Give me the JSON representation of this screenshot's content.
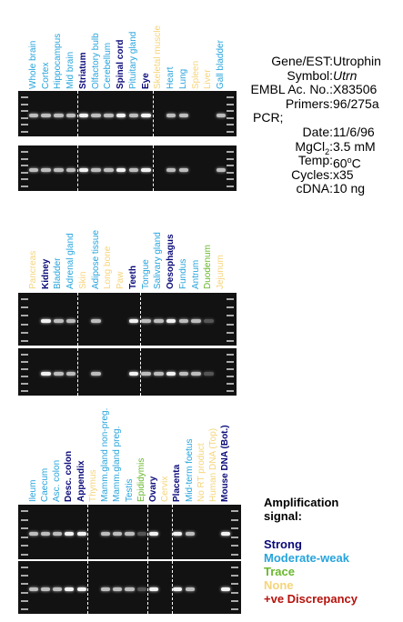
{
  "colors": {
    "strong": "#0a0a7a",
    "moderate": "#27a4dc",
    "trace": "#6ab82e",
    "none": "#f5d47a",
    "discrepancy": "#b5120c"
  },
  "panels": [
    {
      "lanes": [
        {
          "name": "Whole brain",
          "signal": "moderate"
        },
        {
          "name": "Cortex",
          "signal": "moderate"
        },
        {
          "name": "Hippocampus",
          "signal": "moderate"
        },
        {
          "name": "Mid brain",
          "signal": "moderate"
        },
        {
          "name": "Striatum",
          "signal": "strong"
        },
        {
          "name": "Olfactory bulb",
          "signal": "moderate"
        },
        {
          "name": "Cerebellum",
          "signal": "moderate"
        },
        {
          "name": "Spinal cord",
          "signal": "strong"
        },
        {
          "name": "Pituitary gland",
          "signal": "moderate"
        },
        {
          "name": "Eye",
          "signal": "strong"
        },
        {
          "name": "Skeletal muscle",
          "signal": "none"
        },
        {
          "name": "Heart",
          "signal": "moderate"
        },
        {
          "name": "Lung",
          "signal": "moderate"
        },
        {
          "name": "Spleen",
          "signal": "none"
        },
        {
          "name": "Liver",
          "signal": "none"
        },
        {
          "name": "Gall bladder",
          "signal": "moderate"
        }
      ]
    },
    {
      "lanes": [
        {
          "name": "Pancreas",
          "signal": "none"
        },
        {
          "name": "Kidney",
          "signal": "strong"
        },
        {
          "name": "Bladder",
          "signal": "moderate"
        },
        {
          "name": "Adrenal gland",
          "signal": "moderate"
        },
        {
          "name": "Skin",
          "signal": "none"
        },
        {
          "name": "Adipose tissue",
          "signal": "moderate"
        },
        {
          "name": "Long bone",
          "signal": "none"
        },
        {
          "name": "Paw",
          "signal": "none"
        },
        {
          "name": "Teeth",
          "signal": "strong"
        },
        {
          "name": "Tongue",
          "signal": "moderate"
        },
        {
          "name": "Salivary gland",
          "signal": "moderate"
        },
        {
          "name": "Oesophagus",
          "signal": "strong"
        },
        {
          "name": "Fundus",
          "signal": "moderate"
        },
        {
          "name": "Antrum",
          "signal": "moderate"
        },
        {
          "name": "Duodenum",
          "signal": "trace"
        },
        {
          "name": "Jejunum",
          "signal": "none"
        }
      ]
    },
    {
      "lanes": [
        {
          "name": "Ileum",
          "signal": "moderate"
        },
        {
          "name": "Caecum",
          "signal": "moderate"
        },
        {
          "name": "Asc. colon",
          "signal": "moderate"
        },
        {
          "name": "Desc. colon",
          "signal": "strong"
        },
        {
          "name": "Appendix",
          "signal": "strong"
        },
        {
          "name": "Thymus",
          "signal": "none"
        },
        {
          "name": "Mamm.gland non-preg.",
          "signal": "moderate"
        },
        {
          "name": "Mamm.gland preg.",
          "signal": "moderate"
        },
        {
          "name": "Testis",
          "signal": "moderate"
        },
        {
          "name": "Epididymis",
          "signal": "trace"
        },
        {
          "name": "Ovary",
          "signal": "strong"
        },
        {
          "name": "Cervix",
          "signal": "none"
        },
        {
          "name": "Placenta",
          "signal": "strong"
        },
        {
          "name": "Mid-term foetus",
          "signal": "moderate"
        },
        {
          "name": "No RT product",
          "signal": "none"
        },
        {
          "name": "Human DNA (Top)",
          "signal": "none"
        },
        {
          "name": "Mouse DNA (Bot.)",
          "signal": "strong"
        }
      ]
    }
  ],
  "info": {
    "gene_label": "Gene/EST:",
    "gene_value": "Utrophin",
    "symbol_label": "Symbol:",
    "symbol_value": "Utrn",
    "embl_label": "EMBL Ac. No.:",
    "embl_value": "X83506",
    "primers_label": "Primers:",
    "primers_value": "96/275a",
    "pcr_label": "PCR;",
    "date_label": "Date:",
    "date_value": "11/6/96",
    "mgcl2_label_pre": "MgCl",
    "mgcl2_label_sub": "2",
    "mgcl2_label_post": ":",
    "mgcl2_value": "3.5 mM",
    "temp_label": "Temp:",
    "temp_value_pre": "60",
    "temp_value_sup": "o",
    "temp_value_post": "C",
    "cycles_label": "Cycles:",
    "cycles_value": "x35",
    "cdna_label": "cDNA:",
    "cdna_value": "10 ng"
  },
  "legend": {
    "title_line1": "Amplification",
    "title_line2": "signal:",
    "strong": "Strong",
    "moderate": "Moderate-weak",
    "trace": "Trace",
    "none": "None",
    "discrepancy": "+ve Discrepancy"
  }
}
